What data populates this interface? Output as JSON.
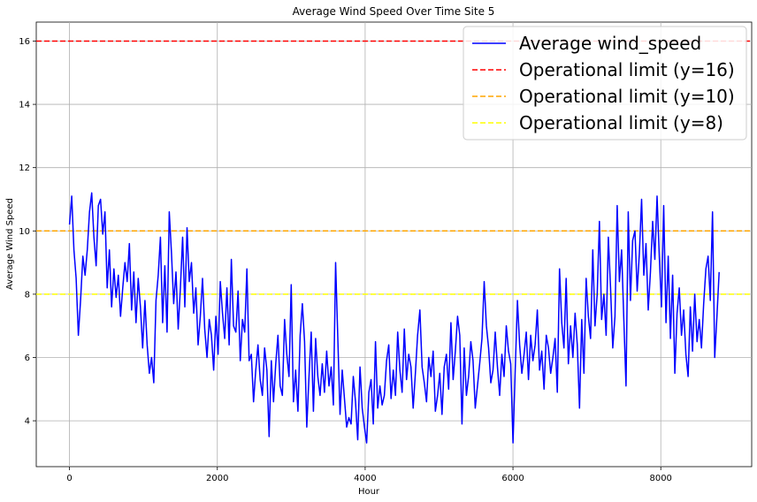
{
  "chart_data": {
    "type": "line",
    "title": "Average Wind Speed Over Time Site 5",
    "xlabel": "Hour",
    "ylabel": "Average Wind Speed",
    "xlim": [
      -450,
      9230
    ],
    "ylim": [
      2.55,
      16.6
    ],
    "xticks": [
      0,
      2000,
      4000,
      6000,
      8000
    ],
    "yticks": [
      4,
      6,
      8,
      10,
      12,
      14,
      16
    ],
    "grid": true,
    "legend_position": "top-right",
    "series": [
      {
        "name": "Average wind_speed",
        "color": "#0000ff",
        "style": "solid",
        "x": [
          0,
          30,
          60,
          90,
          120,
          150,
          180,
          210,
          240,
          270,
          300,
          330,
          360,
          390,
          420,
          450,
          480,
          510,
          540,
          570,
          600,
          630,
          660,
          690,
          720,
          750,
          780,
          810,
          840,
          870,
          900,
          930,
          960,
          990,
          1020,
          1050,
          1080,
          1110,
          1140,
          1170,
          1200,
          1230,
          1260,
          1290,
          1320,
          1350,
          1380,
          1410,
          1440,
          1470,
          1500,
          1530,
          1560,
          1590,
          1620,
          1650,
          1680,
          1710,
          1740,
          1770,
          1800,
          1830,
          1860,
          1890,
          1920,
          1950,
          1980,
          2010,
          2040,
          2070,
          2100,
          2130,
          2160,
          2190,
          2220,
          2250,
          2280,
          2310,
          2340,
          2370,
          2400,
          2430,
          2460,
          2490,
          2520,
          2550,
          2580,
          2610,
          2640,
          2670,
          2700,
          2730,
          2760,
          2790,
          2820,
          2850,
          2880,
          2910,
          2940,
          2970,
          3000,
          3030,
          3060,
          3090,
          3120,
          3150,
          3180,
          3210,
          3240,
          3270,
          3300,
          3330,
          3360,
          3390,
          3420,
          3450,
          3480,
          3510,
          3540,
          3570,
          3600,
          3630,
          3660,
          3690,
          3720,
          3750,
          3780,
          3810,
          3840,
          3870,
          3900,
          3930,
          3960,
          3990,
          4020,
          4050,
          4080,
          4110,
          4140,
          4170,
          4200,
          4230,
          4260,
          4290,
          4320,
          4350,
          4380,
          4410,
          4440,
          4470,
          4500,
          4530,
          4560,
          4590,
          4620,
          4650,
          4680,
          4710,
          4740,
          4770,
          4800,
          4830,
          4860,
          4890,
          4920,
          4950,
          4980,
          5010,
          5040,
          5070,
          5100,
          5130,
          5160,
          5190,
          5220,
          5250,
          5280,
          5310,
          5340,
          5370,
          5400,
          5430,
          5460,
          5490,
          5520,
          5550,
          5580,
          5610,
          5640,
          5670,
          5700,
          5730,
          5760,
          5790,
          5820,
          5850,
          5880,
          5910,
          5940,
          5970,
          6000,
          6030,
          6060,
          6090,
          6120,
          6150,
          6180,
          6210,
          6240,
          6270,
          6300,
          6330,
          6360,
          6390,
          6420,
          6450,
          6480,
          6510,
          6540,
          6570,
          6600,
          6630,
          6660,
          6690,
          6720,
          6750,
          6780,
          6810,
          6840,
          6870,
          6900,
          6930,
          6960,
          6990,
          7020,
          7050,
          7080,
          7110,
          7140,
          7170,
          7200,
          7230,
          7260,
          7290,
          7320,
          7350,
          7380,
          7410,
          7440,
          7470,
          7500,
          7530,
          7560,
          7590,
          7620,
          7650,
          7680,
          7710,
          7740,
          7770,
          7800,
          7830,
          7860,
          7890,
          7920,
          7950,
          7980,
          8010,
          8040,
          8070,
          8100,
          8130,
          8160,
          8190,
          8220,
          8250,
          8280,
          8310,
          8340,
          8370,
          8400,
          8430,
          8460,
          8490,
          8520,
          8550,
          8580,
          8610,
          8640,
          8670,
          8700,
          8730,
          8760,
          8790
        ],
        "y": [
          10.2,
          11.1,
          9.4,
          8.5,
          6.7,
          7.8,
          9.2,
          8.6,
          9.4,
          10.6,
          11.2,
          9.8,
          8.9,
          10.8,
          11.0,
          9.9,
          10.6,
          8.2,
          9.4,
          7.6,
          8.8,
          7.9,
          8.6,
          7.3,
          8.2,
          9.0,
          8.4,
          9.6,
          7.5,
          8.7,
          7.1,
          8.5,
          7.6,
          6.3,
          7.8,
          6.4,
          5.5,
          6.0,
          5.2,
          7.8,
          8.6,
          9.8,
          7.1,
          8.9,
          6.8,
          10.6,
          9.3,
          7.7,
          8.7,
          6.9,
          8.2,
          9.8,
          7.6,
          10.1,
          8.4,
          9.0,
          7.4,
          8.2,
          6.4,
          7.3,
          8.5,
          6.9,
          6.0,
          7.2,
          6.7,
          5.6,
          7.3,
          6.1,
          8.4,
          7.4,
          6.6,
          8.2,
          6.4,
          9.1,
          7.0,
          6.8,
          8.1,
          5.9,
          7.2,
          6.8,
          8.8,
          5.9,
          6.1,
          4.6,
          5.6,
          6.4,
          5.3,
          4.8,
          6.3,
          5.6,
          3.5,
          5.9,
          4.6,
          5.8,
          6.7,
          5.1,
          4.8,
          7.2,
          6.1,
          5.4,
          8.3,
          4.6,
          5.6,
          4.3,
          6.7,
          7.7,
          6.5,
          3.8,
          5.4,
          6.8,
          4.3,
          6.6,
          5.4,
          4.8,
          5.8,
          4.9,
          6.2,
          5.1,
          5.7,
          4.5,
          9.0,
          6.6,
          4.2,
          5.6,
          4.7,
          3.8,
          4.1,
          3.9,
          5.4,
          4.6,
          3.4,
          5.7,
          4.4,
          3.8,
          3.3,
          4.9,
          5.3,
          3.9,
          6.5,
          4.4,
          5.1,
          4.5,
          4.8,
          5.9,
          6.4,
          4.7,
          5.6,
          4.8,
          6.8,
          5.6,
          4.9,
          6.9,
          5.3,
          6.1,
          5.7,
          4.4,
          5.5,
          6.7,
          7.5,
          5.7,
          5.2,
          4.6,
          6.0,
          5.4,
          6.2,
          4.3,
          4.8,
          5.5,
          4.2,
          5.7,
          6.1,
          5.0,
          7.1,
          5.3,
          6.2,
          7.3,
          6.7,
          3.9,
          6.3,
          4.8,
          5.4,
          6.5,
          5.9,
          4.4,
          5.1,
          5.8,
          6.6,
          8.4,
          7.0,
          6.3,
          5.2,
          5.6,
          6.8,
          5.7,
          4.8,
          6.1,
          5.4,
          7.0,
          6.2,
          5.8,
          3.3,
          5.6,
          7.8,
          6.4,
          5.5,
          6.1,
          6.8,
          5.3,
          6.7,
          5.9,
          6.4,
          7.5,
          5.6,
          6.2,
          5.0,
          6.7,
          6.3,
          5.5,
          6.0,
          6.6,
          4.9,
          8.8,
          7.1,
          6.3,
          8.5,
          5.8,
          7.0,
          6.0,
          7.4,
          6.4,
          4.4,
          7.2,
          5.5,
          8.5,
          7.3,
          6.6,
          9.4,
          7.0,
          8.0,
          10.3,
          7.2,
          8.0,
          6.7,
          9.8,
          8.2,
          6.3,
          7.3,
          10.8,
          8.4,
          9.4,
          7.2,
          5.1,
          10.6,
          7.8,
          9.7,
          10.0,
          8.1,
          9.3,
          11.0,
          8.6,
          9.6,
          7.5,
          8.7,
          10.3,
          9.1,
          11.1,
          9.2,
          7.6,
          10.8,
          7.1,
          9.2,
          6.6,
          8.6,
          5.5,
          7.4,
          8.2,
          6.7,
          7.5,
          6.1,
          5.4,
          7.6,
          6.2,
          8.0,
          6.5,
          7.2,
          6.3,
          7.7,
          8.8,
          9.2,
          7.8,
          10.6,
          6.0,
          7.3,
          8.7
        ]
      }
    ],
    "reference_lines": [
      {
        "name": "Operational limit (y=16)",
        "y": 16,
        "color": "#ff0000",
        "style": "dashed"
      },
      {
        "name": "Operational limit (y=10)",
        "y": 10,
        "color": "#ffa500",
        "style": "dashed"
      },
      {
        "name": "Operational limit (y=8)",
        "y": 8,
        "color": "#ffff00",
        "style": "dashed"
      }
    ]
  }
}
